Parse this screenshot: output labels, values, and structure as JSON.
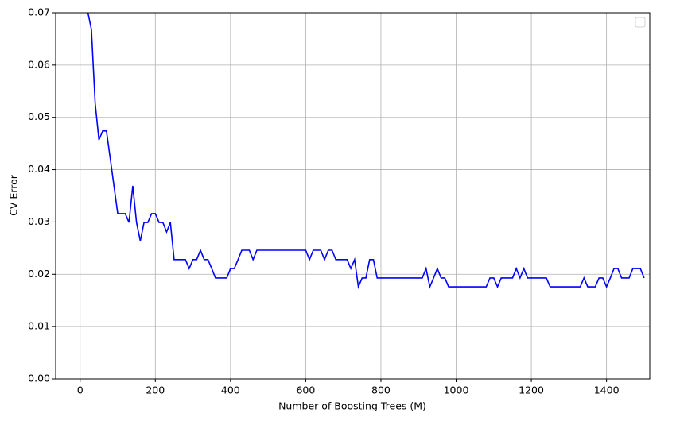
{
  "chart_data": {
    "type": "line",
    "x_label": "Number of Boosting Trees (M)",
    "y_label": "CV Error",
    "x": [
      10,
      20,
      30,
      40,
      50,
      60,
      70,
      80,
      90,
      100,
      120,
      130,
      140,
      150,
      160,
      170,
      180,
      190,
      200,
      210,
      220,
      230,
      240,
      250,
      280,
      290,
      300,
      310,
      320,
      330,
      340,
      350,
      360,
      390,
      400,
      410,
      420,
      430,
      450,
      460,
      470,
      600,
      610,
      620,
      640,
      650,
      660,
      670,
      680,
      710,
      720,
      730,
      740,
      750,
      760,
      770,
      780,
      790,
      910,
      920,
      930,
      940,
      950,
      960,
      970,
      980,
      1080,
      1090,
      1100,
      1110,
      1120,
      1150,
      1160,
      1170,
      1180,
      1190,
      1240,
      1250,
      1330,
      1340,
      1350,
      1370,
      1380,
      1390,
      1400,
      1410,
      1420,
      1430,
      1440,
      1460,
      1470,
      1490,
      1500
    ],
    "series": [
      {
        "color": "#0000ff",
        "values": [
          0.0738,
          0.0703,
          0.0668,
          0.0527,
          0.0457,
          0.0474,
          0.0474,
          0.0422,
          0.0369,
          0.0316,
          0.0316,
          0.0299,
          0.0369,
          0.0299,
          0.0264,
          0.0299,
          0.0299,
          0.0316,
          0.0316,
          0.0299,
          0.0299,
          0.0281,
          0.0299,
          0.0228,
          0.0228,
          0.0211,
          0.0228,
          0.0228,
          0.0246,
          0.0228,
          0.0228,
          0.0211,
          0.0193,
          0.0193,
          0.0211,
          0.0211,
          0.0228,
          0.0246,
          0.0246,
          0.0228,
          0.0246,
          0.0246,
          0.0228,
          0.0246,
          0.0246,
          0.0228,
          0.0246,
          0.0246,
          0.0228,
          0.0228,
          0.0211,
          0.0228,
          0.0176,
          0.0193,
          0.0193,
          0.0228,
          0.0228,
          0.0193,
          0.0193,
          0.0211,
          0.0176,
          0.0193,
          0.0211,
          0.0193,
          0.0193,
          0.0176,
          0.0176,
          0.0193,
          0.0193,
          0.0176,
          0.0193,
          0.0193,
          0.0211,
          0.0193,
          0.0211,
          0.0193,
          0.0193,
          0.0176,
          0.0176,
          0.0193,
          0.0176,
          0.0176,
          0.0193,
          0.0193,
          0.0176,
          0.0193,
          0.0211,
          0.0211,
          0.0193,
          0.0193,
          0.0211,
          0.0211,
          0.0193
        ]
      }
    ],
    "xlim": [
      -65,
      1515
    ],
    "xticks": [
      0,
      200,
      400,
      600,
      800,
      1000,
      1200,
      1400
    ],
    "ylim": [
      0,
      0.07
    ],
    "yticks": [
      {
        "value": 0,
        "label": "0.00"
      },
      {
        "value": 0.01,
        "label": "0.01"
      },
      {
        "value": 0.02,
        "label": "0.02"
      },
      {
        "value": 0.03,
        "label": "0.03"
      },
      {
        "value": 0.04,
        "label": "0.04"
      },
      {
        "value": 0.05,
        "label": "0.05"
      },
      {
        "value": 0.06,
        "label": "0.06"
      },
      {
        "value": 0.07,
        "label": "0.07"
      }
    ],
    "grid": true,
    "legend": "upper right"
  }
}
